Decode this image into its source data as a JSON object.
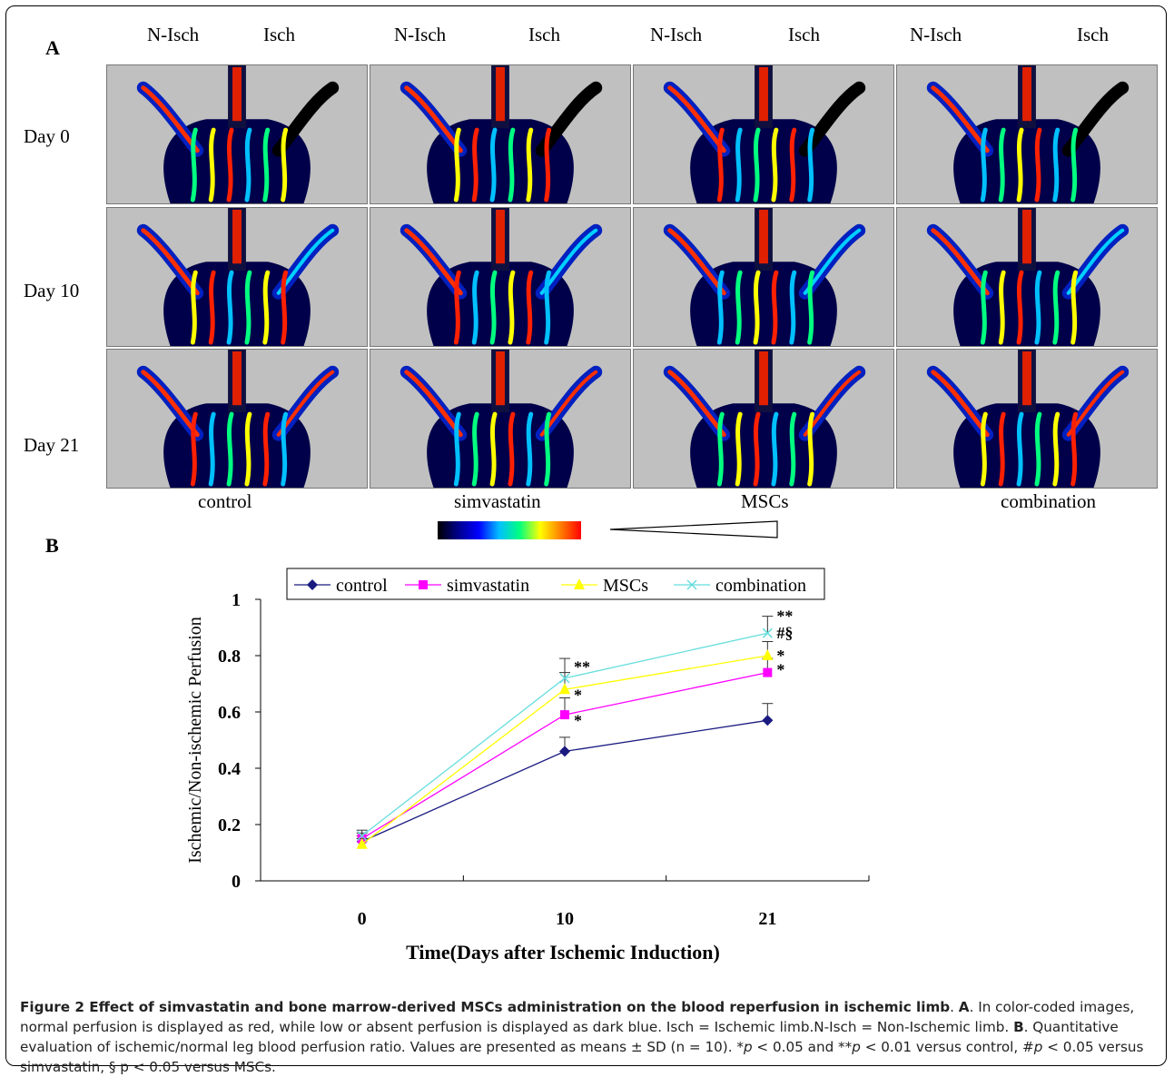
{
  "panel_a": {
    "letter": "A",
    "column_headers": [
      "N-Isch",
      "Isch",
      "N-Isch",
      "Isch",
      "N-Isch",
      "Isch",
      "N-Isch",
      "Isch"
    ],
    "row_labels": [
      "Day 0",
      "Day 10",
      "Day 21"
    ],
    "group_labels": [
      "control",
      "simvastatin",
      "MSCs",
      "combination"
    ],
    "scale_gradient": [
      "#000000",
      "#00008b",
      "#0000ff",
      "#00bfff",
      "#00ff7f",
      "#ffff00",
      "#ff7f00",
      "#ff0000"
    ]
  },
  "panel_b": {
    "letter": "B"
  },
  "chart_data": {
    "type": "line",
    "x": [
      0,
      10,
      21
    ],
    "x_tick_labels": [
      "0",
      "10",
      "21"
    ],
    "y_ticks": [
      0,
      0.2,
      0.4,
      0.6,
      0.8,
      1
    ],
    "y_tick_labels": [
      "0",
      "0.2",
      "0.4",
      "0.6",
      "0.8",
      "1"
    ],
    "ylim": [
      0,
      1
    ],
    "xlabel": "Time(Days after Ischemic Induction)",
    "ylabel": "Ischemic/Non-ischemic Perfusion",
    "legend_position": "top",
    "series": [
      {
        "name": "control",
        "values": [
          0.14,
          0.46,
          0.57
        ],
        "errors": [
          0.02,
          0.05,
          0.06
        ],
        "color": "#1a1a80",
        "marker": "diamond"
      },
      {
        "name": "simvastatin",
        "values": [
          0.15,
          0.59,
          0.74
        ],
        "errors": [
          0.02,
          0.06,
          0.05
        ],
        "color": "#ff00ff",
        "marker": "square"
      },
      {
        "name": "MSCs",
        "values": [
          0.13,
          0.68,
          0.8
        ],
        "errors": [
          0.02,
          0.06,
          0.05
        ],
        "color": "#ffff00",
        "marker": "triangle"
      },
      {
        "name": "combination",
        "values": [
          0.16,
          0.72,
          0.88
        ],
        "errors": [
          0.02,
          0.07,
          0.06
        ],
        "color": "#66dddd",
        "marker": "x"
      }
    ],
    "annotations": [
      {
        "x": 10,
        "y": 0.76,
        "text": "**"
      },
      {
        "x": 10,
        "y": 0.66,
        "text": "*"
      },
      {
        "x": 10,
        "y": 0.57,
        "text": "*"
      },
      {
        "x": 21,
        "y": 0.94,
        "text": "**"
      },
      {
        "x": 21,
        "y": 0.88,
        "text": "#§"
      },
      {
        "x": 21,
        "y": 0.8,
        "text": "*"
      },
      {
        "x": 21,
        "y": 0.75,
        "text": "*"
      }
    ]
  },
  "caption": {
    "fig_label": "Figure 2 Effect of simvastatin and bone marrow-derived MSCs administration on the blood reperfusion in ischemic limb",
    "sep1": ". ",
    "a": "A",
    "text_a": ". In color-coded images, normal perfusion is displayed as red, while low or absent perfusion is displayed as dark blue. Isch = Ischemic limb.N-Isch = Non-Ischemic limb. ",
    "b": "B",
    "text_b": ". Quantitative evaluation of ischemic/normal leg blood perfusion ratio. Values are presented as means ± SD (n = 10). *",
    "p1": "p",
    "t1": " < 0.05 and **",
    "p2": "p",
    "t2": " < 0.01 versus control, #",
    "p3": "p",
    "t3": " < 0.05 versus simvastatin, § p < 0.05 versus MSCs."
  }
}
